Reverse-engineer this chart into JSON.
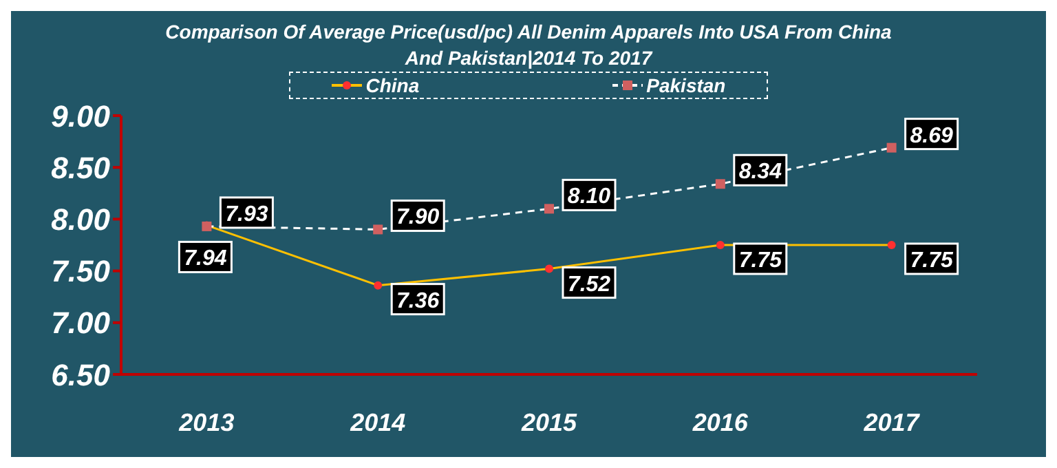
{
  "chart_data": {
    "type": "line",
    "title": "Comparison Of Average Price(usd/pc) All Denim Apparels Into USA From China And Pakistan|2014 To 2017",
    "categories": [
      "2013",
      "2014",
      "2015",
      "2016",
      "2017"
    ],
    "series": [
      {
        "name": "China",
        "color": "#ffc000",
        "values": [
          7.94,
          7.36,
          7.52,
          7.75,
          7.75
        ],
        "value_labels": [
          "7.94",
          "7.36",
          "7.52",
          "7.75",
          "7.75"
        ],
        "marker": "circle",
        "line_style": "solid"
      },
      {
        "name": "Pakistan",
        "color": "#ffffff",
        "values": [
          7.93,
          7.9,
          8.1,
          8.34,
          8.69
        ],
        "value_labels": [
          "7.93",
          "7.90",
          "8.10",
          "8.34",
          "8.69"
        ],
        "marker": "square",
        "line_style": "dashed"
      }
    ],
    "ylim": [
      6.5,
      9
    ],
    "yticks": [
      {
        "value": 6.5,
        "label": "6.50"
      },
      {
        "value": 7,
        "label": "7.00"
      },
      {
        "value": 7.5,
        "label": "7.50"
      },
      {
        "value": 8,
        "label": "8.00"
      },
      {
        "value": 8.5,
        "label": "8.50"
      },
      {
        "value": 9,
        "label": "9.00"
      }
    ],
    "legend": "top",
    "grid": false
  }
}
